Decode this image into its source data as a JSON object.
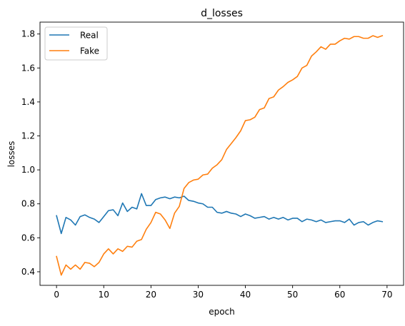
{
  "chart_data": {
    "type": "line",
    "title": "d_losses",
    "xlabel": "epoch",
    "ylabel": "losses",
    "xlim": [
      -3.5,
      73.5
    ],
    "ylim": [
      0.32,
      1.87
    ],
    "xticks": [
      0,
      10,
      20,
      30,
      40,
      50,
      60,
      70
    ],
    "yticks": [
      0.4,
      0.6,
      0.8,
      1.0,
      1.2,
      1.4,
      1.6,
      1.8
    ],
    "xtick_labels": [
      "0",
      "10",
      "20",
      "30",
      "40",
      "50",
      "60",
      "70"
    ],
    "ytick_labels": [
      "0.4",
      "0.6",
      "0.8",
      "1.0",
      "1.2",
      "1.4",
      "1.6",
      "1.8"
    ],
    "grid": false,
    "legend_position": "top-left",
    "x": [
      0,
      1,
      2,
      3,
      4,
      5,
      6,
      7,
      8,
      9,
      10,
      11,
      12,
      13,
      14,
      15,
      16,
      17,
      18,
      19,
      20,
      21,
      22,
      23,
      24,
      25,
      26,
      27,
      28,
      29,
      30,
      31,
      32,
      33,
      34,
      35,
      36,
      37,
      38,
      39,
      40,
      41,
      42,
      43,
      44,
      45,
      46,
      47,
      48,
      49,
      50,
      51,
      52,
      53,
      54,
      55,
      56,
      57,
      58,
      59,
      60,
      61,
      62,
      63,
      64,
      65,
      66,
      67,
      68,
      69
    ],
    "series": [
      {
        "name": "Real",
        "color": "#1f77b4",
        "values": [
          0.73,
          0.625,
          0.72,
          0.705,
          0.675,
          0.725,
          0.735,
          0.72,
          0.71,
          0.69,
          0.725,
          0.76,
          0.765,
          0.73,
          0.805,
          0.755,
          0.78,
          0.77,
          0.86,
          0.79,
          0.79,
          0.825,
          0.835,
          0.84,
          0.83,
          0.84,
          0.835,
          0.845,
          0.82,
          0.815,
          0.805,
          0.8,
          0.78,
          0.78,
          0.75,
          0.745,
          0.755,
          0.745,
          0.74,
          0.725,
          0.74,
          0.73,
          0.715,
          0.72,
          0.725,
          0.71,
          0.72,
          0.71,
          0.72,
          0.705,
          0.715,
          0.715,
          0.695,
          0.71,
          0.705,
          0.695,
          0.705,
          0.69,
          0.695,
          0.7,
          0.7,
          0.69,
          0.71,
          0.675,
          0.69,
          0.695,
          0.675,
          0.69,
          0.7,
          0.695
        ]
      },
      {
        "name": "Fake",
        "color": "#ff7f0e",
        "values": [
          0.49,
          0.38,
          0.44,
          0.415,
          0.44,
          0.415,
          0.455,
          0.45,
          0.43,
          0.455,
          0.505,
          0.535,
          0.505,
          0.535,
          0.52,
          0.55,
          0.545,
          0.58,
          0.59,
          0.65,
          0.69,
          0.75,
          0.74,
          0.705,
          0.655,
          0.745,
          0.785,
          0.89,
          0.925,
          0.94,
          0.945,
          0.97,
          0.975,
          1.01,
          1.03,
          1.06,
          1.12,
          1.155,
          1.19,
          1.23,
          1.29,
          1.295,
          1.31,
          1.355,
          1.365,
          1.42,
          1.43,
          1.47,
          1.49,
          1.515,
          1.53,
          1.55,
          1.6,
          1.615,
          1.67,
          1.695,
          1.725,
          1.71,
          1.74,
          1.74,
          1.76,
          1.775,
          1.77,
          1.785,
          1.785,
          1.775,
          1.775,
          1.79,
          1.78,
          1.79
        ]
      }
    ]
  }
}
